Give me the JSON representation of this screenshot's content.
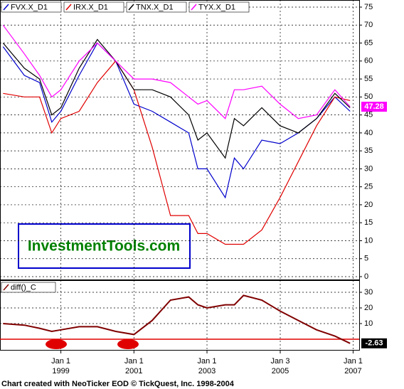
{
  "chart_data": [
    {
      "type": "line",
      "xlim": [
        "1997-05",
        "2007-03"
      ],
      "ylim": [
        0,
        75
      ],
      "yticks": [
        0,
        5,
        10,
        15,
        20,
        25,
        30,
        35,
        40,
        45,
        50,
        55,
        60,
        65,
        70,
        75
      ],
      "xticks": [
        "1999-01-01",
        "2001-01-01",
        "2003-01-01",
        "2005-01-03",
        "2007-01-01"
      ],
      "grid": true,
      "annotation": "InvestmentTools.com",
      "x": [
        "1997-06",
        "1998-01",
        "1998-06",
        "1998-10",
        "1999-01",
        "1999-07",
        "2000-01",
        "2000-07",
        "2001-01",
        "2001-07",
        "2002-01",
        "2002-07",
        "2002-10",
        "2003-01",
        "2003-07",
        "2003-10",
        "2004-01",
        "2004-07",
        "2005-01",
        "2005-07",
        "2006-01",
        "2006-07",
        "2006-12"
      ],
      "series": [
        {
          "name": "FVX.X_D1",
          "color": "#0000cc",
          "values": [
            64,
            56,
            54,
            43,
            46,
            56,
            65,
            60,
            48,
            46,
            43,
            40,
            30,
            30,
            22,
            33,
            30,
            38,
            37,
            40,
            44,
            50,
            46
          ]
        },
        {
          "name": "IRX.X_D1",
          "color": "#e00000",
          "values": [
            51,
            50,
            50,
            40,
            44,
            46,
            54,
            60,
            52,
            36,
            17,
            17,
            12,
            12,
            9,
            9,
            9,
            13,
            22,
            32,
            42,
            50,
            49
          ]
        },
        {
          "name": "TNX.X_D1",
          "color": "#000000",
          "values": [
            65,
            58,
            55,
            45,
            47,
            58,
            66,
            60,
            52,
            52,
            50,
            45,
            38,
            40,
            33,
            44,
            42,
            47,
            42,
            40,
            44,
            51,
            47
          ]
        },
        {
          "name": "TYX.X_D1",
          "color": "#ff00ff",
          "values": [
            70,
            62,
            56,
            50,
            52,
            60,
            65,
            60,
            55,
            55,
            54,
            50,
            48,
            49,
            44,
            52,
            52,
            53,
            48,
            44,
            45,
            52,
            47.28
          ]
        }
      ]
    },
    {
      "type": "line",
      "xlim": [
        "1997-05",
        "2007-03"
      ],
      "ylim": [
        -7,
        36
      ],
      "yticks": [
        10,
        20,
        30
      ],
      "xticks": [
        {
          "value": "1999-01-01",
          "label": "Jan 1\n1999"
        },
        {
          "value": "2001-01-01",
          "label": "Jan 1\n2001"
        },
        {
          "value": "2003-01-01",
          "label": "Jan 1\n2003"
        },
        {
          "value": "2005-01-03",
          "label": "Jan 3\n2005"
        },
        {
          "value": "2007-01-01",
          "label": "Jan 1\n2007"
        }
      ],
      "grid": true,
      "hline": 0,
      "hline_color": "#e00000",
      "x": [
        "1997-06",
        "1998-01",
        "1998-06",
        "1998-10",
        "1999-01",
        "1999-07",
        "2000-01",
        "2000-07",
        "2001-01",
        "2001-07",
        "2002-01",
        "2002-07",
        "2002-10",
        "2003-01",
        "2003-07",
        "2003-10",
        "2004-01",
        "2004-07",
        "2005-01",
        "2005-07",
        "2006-01",
        "2006-07",
        "2006-12"
      ],
      "series": [
        {
          "name": "diff()_C",
          "color": "#800000",
          "values": [
            10,
            9,
            7,
            5,
            6,
            8,
            8,
            5,
            3,
            12,
            25,
            27,
            22,
            20,
            22,
            22,
            28,
            25,
            18,
            12,
            6,
            2,
            -2.63
          ]
        }
      ]
    }
  ],
  "footer": "Chart created with NeoTicker EOD © TickQuest, Inc. 1998-2004"
}
